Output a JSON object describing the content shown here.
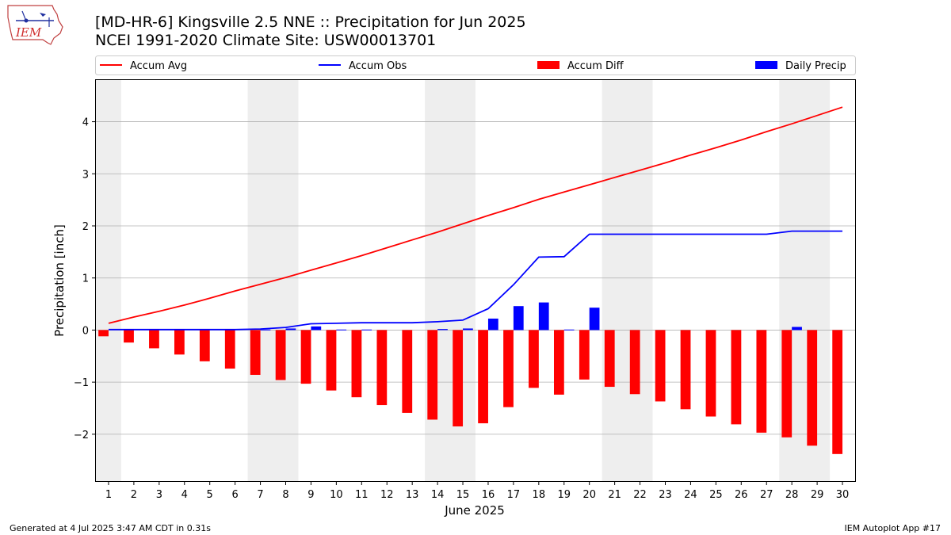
{
  "header": {
    "title_line1": "[MD-HR-6] Kingsville 2.5 NNE :: Precipitation for Jun 2025",
    "title_line2": "NCEI 1991-2020 Climate Site: USW00013701",
    "logo_text": "IEM"
  },
  "footer": {
    "generated": "Generated at 4 Jul 2025 3:47 AM CDT in 0.31s",
    "app": "IEM Autoplot App #17"
  },
  "chart_data": {
    "type": "bar",
    "xlabel": "June 2025",
    "ylabel": "Precipitation [inch]",
    "ylim": [
      -2.9,
      4.8
    ],
    "xlim": [
      0.5,
      30.5
    ],
    "yticks": [
      -2,
      -1,
      0,
      1,
      2,
      3,
      4
    ],
    "ytick_labels": [
      "−2",
      "−1",
      "0",
      "1",
      "2",
      "3",
      "4"
    ],
    "categories": [
      "1",
      "2",
      "3",
      "4",
      "5",
      "6",
      "7",
      "8",
      "9",
      "10",
      "11",
      "12",
      "13",
      "14",
      "15",
      "16",
      "17",
      "18",
      "19",
      "20",
      "21",
      "22",
      "23",
      "24",
      "25",
      "26",
      "27",
      "28",
      "29",
      "30"
    ],
    "weekend_shading": [
      [
        0.5,
        1.5
      ],
      [
        6.5,
        8.5
      ],
      [
        13.5,
        15.5
      ],
      [
        20.5,
        22.5
      ],
      [
        27.5,
        29.5
      ]
    ],
    "grid": "horizontal",
    "legend": {
      "placement": "top",
      "entries": [
        "Accum Avg",
        "Accum Obs",
        "Accum Diff",
        "Daily Precip"
      ]
    },
    "colors": {
      "accum_avg": "#ff0000",
      "accum_obs": "#0000ff",
      "accum_diff": "#ff0000",
      "daily_precip": "#0000ff",
      "shade": "#eeeeee",
      "grid": "#b0b0b0"
    },
    "series": [
      {
        "name": "Accum Avg",
        "kind": "line",
        "values": [
          0.13,
          0.25,
          0.36,
          0.48,
          0.61,
          0.75,
          0.88,
          1.01,
          1.15,
          1.29,
          1.43,
          1.58,
          1.73,
          1.88,
          2.04,
          2.2,
          2.35,
          2.51,
          2.65,
          2.79,
          2.93,
          3.07,
          3.21,
          3.36,
          3.5,
          3.65,
          3.81,
          3.96,
          4.12,
          4.28
        ]
      },
      {
        "name": "Accum Obs",
        "kind": "line",
        "values": [
          0.01,
          0.01,
          0.01,
          0.01,
          0.01,
          0.01,
          0.02,
          0.05,
          0.12,
          0.13,
          0.14,
          0.14,
          0.14,
          0.16,
          0.19,
          0.41,
          0.87,
          1.4,
          1.41,
          1.84,
          1.84,
          1.84,
          1.84,
          1.84,
          1.84,
          1.84,
          1.84,
          1.9,
          1.9,
          1.9
        ]
      },
      {
        "name": "Accum Diff",
        "kind": "bar",
        "values": [
          -0.12,
          -0.24,
          -0.35,
          -0.47,
          -0.6,
          -0.74,
          -0.86,
          -0.96,
          -1.03,
          -1.16,
          -1.29,
          -1.44,
          -1.59,
          -1.72,
          -1.85,
          -1.79,
          -1.48,
          -1.11,
          -1.24,
          -0.95,
          -1.09,
          -1.23,
          -1.37,
          -1.52,
          -1.66,
          -1.81,
          -1.97,
          -2.06,
          -2.22,
          -2.38
        ]
      },
      {
        "name": "Daily Precip",
        "kind": "bar",
        "values": [
          0,
          0,
          0,
          0,
          0,
          0,
          0.01,
          0.03,
          0.07,
          0.01,
          0.01,
          0,
          0,
          0.02,
          0.03,
          0.22,
          0.46,
          0.53,
          0.01,
          0.43,
          0,
          0,
          0,
          0,
          0,
          0,
          0,
          0.06,
          0,
          0
        ]
      }
    ]
  }
}
